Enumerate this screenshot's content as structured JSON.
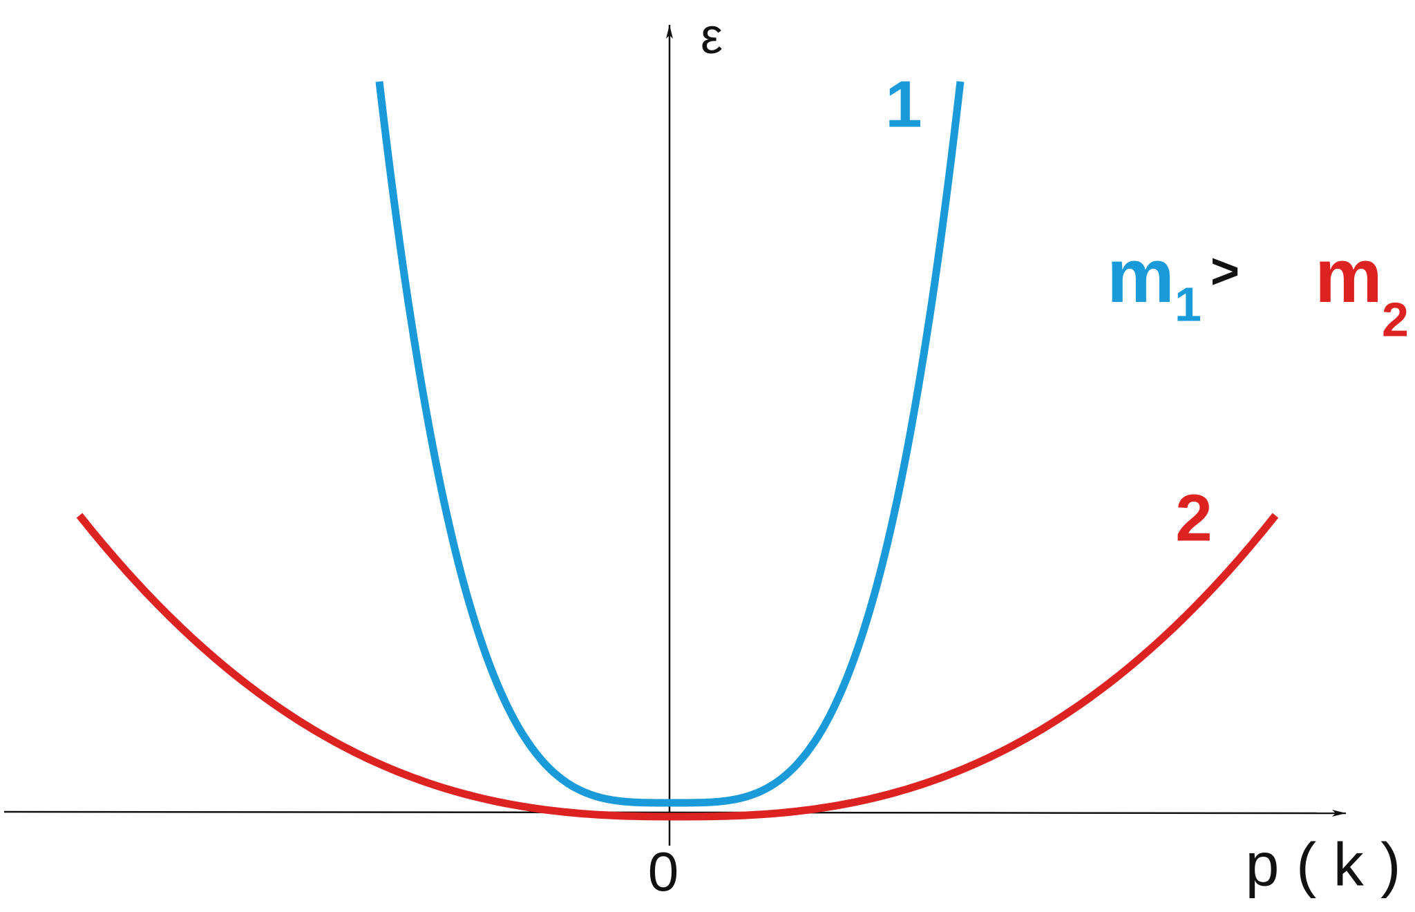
{
  "axes": {
    "y_label": "ε",
    "x_label": "p ( k )",
    "origin_label": "0"
  },
  "curves": [
    {
      "label": "1"
    },
    {
      "label": "2"
    }
  ],
  "relation": {
    "left": "m",
    "left_sub": "1",
    "sign": ">",
    "right": "m",
    "right_sub": "2"
  }
}
